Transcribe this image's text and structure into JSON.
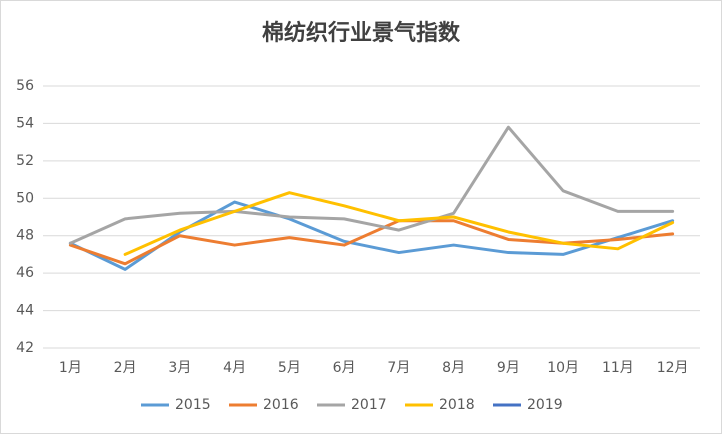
{
  "chart_data": {
    "type": "line",
    "title": "棉纺织行业景气指数",
    "categories": [
      "1月",
      "2月",
      "3月",
      "4月",
      "5月",
      "6月",
      "7月",
      "8月",
      "9月",
      "10月",
      "11月",
      "12月"
    ],
    "series": [
      {
        "name": "2015",
        "color": "#5b9bd5",
        "values": [
          47.6,
          46.2,
          48.2,
          49.8,
          48.9,
          47.7,
          47.1,
          47.5,
          47.1,
          47.0,
          47.9,
          48.8
        ]
      },
      {
        "name": "2016",
        "color": "#ed7d31",
        "values": [
          47.5,
          46.5,
          48.0,
          47.5,
          47.9,
          47.5,
          48.8,
          48.8,
          47.8,
          47.6,
          47.8,
          48.1
        ]
      },
      {
        "name": "2017",
        "color": "#a5a5a5",
        "values": [
          47.6,
          48.9,
          49.2,
          49.3,
          49.0,
          48.9,
          48.3,
          49.2,
          53.8,
          50.4,
          49.3,
          49.3
        ]
      },
      {
        "name": "2018",
        "color": "#ffc000",
        "values": [
          null,
          47.0,
          48.3,
          49.3,
          50.3,
          49.6,
          48.8,
          49.0,
          48.2,
          47.6,
          47.3,
          48.7
        ]
      },
      {
        "name": "2019",
        "color": "#4472c4",
        "values": [
          null,
          null,
          null,
          null,
          null,
          null,
          null,
          null,
          null,
          null,
          null,
          null
        ]
      }
    ],
    "ylim": [
      42,
      56
    ],
    "yticks": [
      42,
      44,
      46,
      48,
      50,
      52,
      54,
      56
    ],
    "grid": true,
    "legend": "bottom"
  }
}
